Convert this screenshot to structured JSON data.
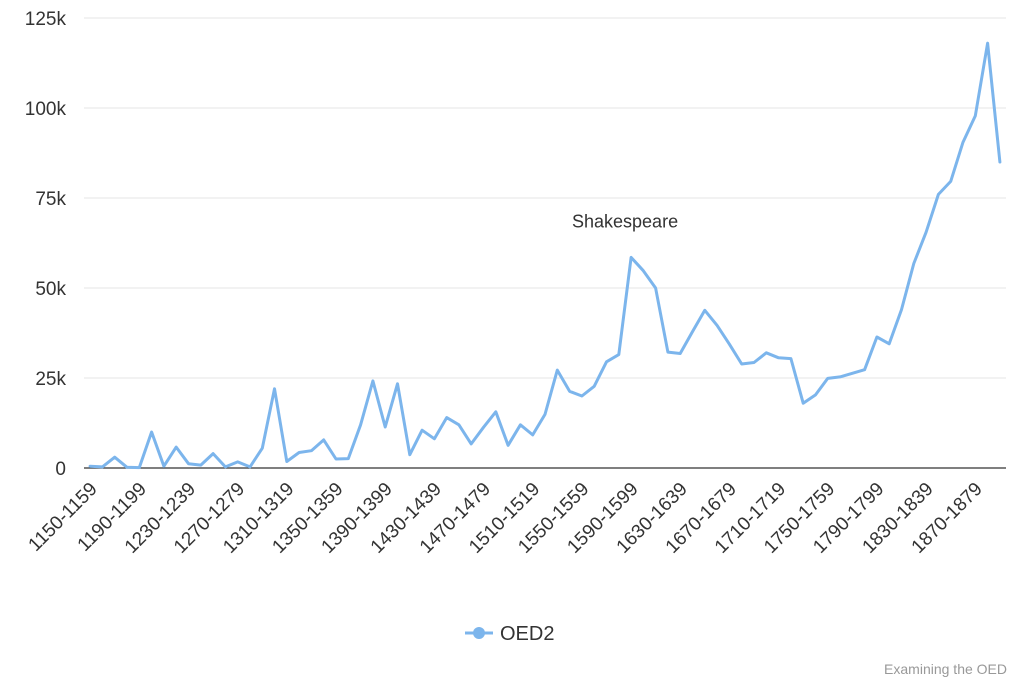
{
  "chart_data": {
    "type": "line",
    "title": "",
    "xlabel": "",
    "ylabel": "",
    "ylim": [
      0,
      125000
    ],
    "y_ticks": [
      {
        "value": 0,
        "label": "0"
      },
      {
        "value": 25000,
        "label": "25k"
      },
      {
        "value": 50000,
        "label": "50k"
      },
      {
        "value": 75000,
        "label": "75k"
      },
      {
        "value": 100000,
        "label": "100k"
      },
      {
        "value": 125000,
        "label": "125k"
      }
    ],
    "grid": true,
    "legend_position": "bottom-center",
    "categories": [
      "1150-1159",
      "1160-1169",
      "1170-1179",
      "1180-1189",
      "1190-1199",
      "1200-1209",
      "1210-1219",
      "1220-1229",
      "1230-1239",
      "1240-1249",
      "1250-1259",
      "1260-1269",
      "1270-1279",
      "1280-1289",
      "1290-1299",
      "1300-1309",
      "1310-1319",
      "1320-1329",
      "1330-1339",
      "1340-1349",
      "1350-1359",
      "1360-1369",
      "1370-1379",
      "1380-1389",
      "1390-1399",
      "1400-1409",
      "1410-1419",
      "1420-1429",
      "1430-1439",
      "1440-1449",
      "1450-1459",
      "1460-1469",
      "1470-1479",
      "1480-1489",
      "1490-1499",
      "1500-1509",
      "1510-1519",
      "1520-1529",
      "1530-1539",
      "1540-1549",
      "1550-1559",
      "1560-1569",
      "1570-1579",
      "1580-1589",
      "1590-1599",
      "1600-1609",
      "1610-1619",
      "1620-1629",
      "1630-1639",
      "1640-1649",
      "1650-1659",
      "1660-1669",
      "1670-1679",
      "1680-1689",
      "1690-1699",
      "1700-1709",
      "1710-1719",
      "1720-1729",
      "1730-1739",
      "1740-1749",
      "1750-1759",
      "1760-1769",
      "1770-1779",
      "1780-1789",
      "1790-1799",
      "1800-1809",
      "1810-1819",
      "1820-1829",
      "1830-1839",
      "1840-1849",
      "1850-1859",
      "1860-1869",
      "1870-1879",
      "1880-1889",
      "1890-1899"
    ],
    "visible_x_tick_labels": [
      "1150-1159",
      "1190-1199",
      "1230-1239",
      "1270-1279",
      "1310-1319",
      "1350-1359",
      "1390-1399",
      "1430-1439",
      "1470-1479",
      "1510-1519",
      "1550-1559",
      "1590-1599",
      "1630-1639",
      "1670-1679",
      "1710-1719",
      "1750-1759",
      "1790-1799",
      "1830-1839",
      "1870-1879"
    ],
    "series": [
      {
        "name": "OED2",
        "color": "#7cb5ec",
        "values": [
          500,
          300,
          3000,
          200,
          100,
          10000,
          500,
          5800,
          1200,
          800,
          4000,
          300,
          1700,
          300,
          5500,
          22000,
          1800,
          4300,
          4800,
          7800,
          2500,
          2600,
          12000,
          24200,
          11400,
          23400,
          3700,
          10500,
          8100,
          14000,
          12000,
          6700,
          11300,
          15600,
          6300,
          12000,
          9200,
          14900,
          27200,
          21300,
          20000,
          22700,
          29500,
          31500,
          58500,
          54800,
          50000,
          32200,
          31800,
          37900,
          43800,
          39600,
          34400,
          28900,
          29300,
          32000,
          30600,
          30400,
          18000,
          20300,
          24900,
          25300,
          26300,
          27300,
          36400,
          34500,
          44000,
          56800,
          65500,
          76000,
          79600,
          90500,
          97800,
          118000,
          85000
        ]
      }
    ],
    "annotations": [
      {
        "text": "Shakespeare",
        "category": "1590-1599"
      }
    ],
    "credits": "Examining the OED"
  }
}
